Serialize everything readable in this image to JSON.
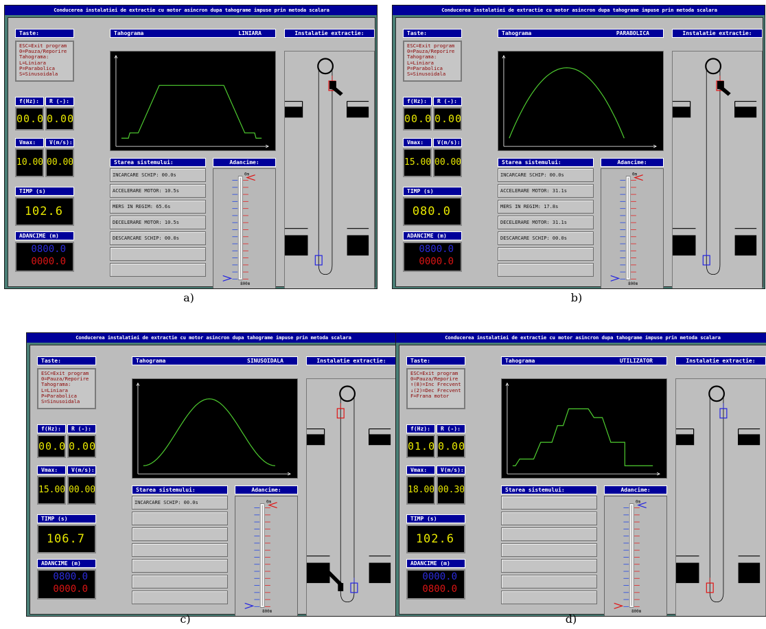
{
  "window_title": "Conducerea instalatiei de extractie cu motor asincron dupa tahograme impuse prin metoda scalara",
  "labels": {
    "keys_header": "Taste:",
    "freq_header": "f(Hz):",
    "r_header": "R (-):",
    "vmax_header": "Vmax:",
    "v_header": "V(m/s):",
    "time_header": "TIMP (s)",
    "depth_header": "ADANCIME (m)",
    "tach_header": "Tahograma",
    "status_header": "Starea sistemului:",
    "advance_header": "Adancime:",
    "shaft_header": "Instalatie extractie:",
    "scale_top": "0m",
    "scale_bottom": "800m"
  },
  "panels": [
    {
      "caption": "a)",
      "keys": [
        "ESC=Exit program",
        "0=Pauza/Reporire",
        "Tahograma:",
        "  L=Liniara",
        "  P=Parabolica",
        "  S=Sinusoidala"
      ],
      "tachogram_mode": "LINIARA",
      "curve_type": "linear",
      "freq": "00.0",
      "r": "0.00",
      "vmax": "10.00",
      "v": "00.00",
      "time": "102.6",
      "depth_a": "0800.0",
      "depth_b": "0000.0",
      "status_rows": [
        "INCARCARE SCHIP: 00.0s",
        "ACCELERARE MOTOR: 10.5s",
        "MERS IN REGIM: 65.6s",
        "DECELERARE MOTOR: 10.5s",
        "DESCARCARE SCHIP: 00.0s",
        "",
        ""
      ],
      "skip1_fraction": 0.0,
      "skip2_fraction": 1.0,
      "skip1_color": "#e01010",
      "skip2_color": "#2020e0",
      "top_arrow_color": "#e01010",
      "bottom_arrow_color": "#2020e0",
      "dump_arm": "top"
    },
    {
      "caption": "b)",
      "keys": [
        "ESC=Exit program",
        "0=Pauza/Reporire",
        "Tahograma:",
        "  L=Liniara",
        "  P=Parabolica",
        "  S=Sinusoidala"
      ],
      "tachogram_mode": "PARABOLICA",
      "curve_type": "parabolic",
      "freq": "00.0",
      "r": "0.00",
      "vmax": "15.00",
      "v": "00.00",
      "time": "080.0",
      "depth_a": "0800.0",
      "depth_b": "0000.0",
      "status_rows": [
        "INCARCARE SCHIP: 00.0s",
        "ACCELERARE MOTOR: 31.1s",
        "MERS IN REGIM: 17.8s",
        "DECELERARE MOTOR: 31.1s",
        "DESCARCARE SCHIP: 00.0s",
        "",
        ""
      ],
      "skip1_fraction": 0.0,
      "skip2_fraction": 1.0,
      "skip1_color": "#e01010",
      "skip2_color": "#2020e0",
      "top_arrow_color": "#e01010",
      "bottom_arrow_color": "#2020e0",
      "dump_arm": "top"
    },
    {
      "caption": "c)",
      "keys": [
        "ESC=Exit program",
        "0=Pauza/Reporire",
        "Tahograma:",
        "  L=Liniara",
        "  P=Parabolica",
        "  S=Sinusoidala"
      ],
      "tachogram_mode": "SINUSOIDALA",
      "curve_type": "sinusoidal",
      "freq": "00.0",
      "r": "0.00",
      "vmax": "15.00",
      "v": "00.00",
      "time": "106.7",
      "depth_a": "0800.0",
      "depth_b": "0000.0",
      "status_rows": [
        "INCARCARE SCHIP: 00.0s",
        "",
        "",
        "",
        "",
        "",
        ""
      ],
      "skip1_fraction": 1.0,
      "skip2_fraction": 0.0,
      "skip1_color": "#2020e0",
      "skip2_color": "#e01010",
      "top_arrow_color": "#e01010",
      "bottom_arrow_color": "#2020e0",
      "dump_arm": "bottom"
    },
    {
      "caption": "d)",
      "keys": [
        "ESC=Exit program",
        "0=Pauza/Reporire",
        "↑(8)=Inc Frecventa",
        "↓(2)=Dec Frecventa",
        "F=Frana motor"
      ],
      "tachogram_mode": "UTILIZATOR",
      "curve_type": "user",
      "freq": "01.0",
      "r": "0.00",
      "vmax": "18.00",
      "v": "00.30",
      "time": "102.6",
      "depth_a": "0000.0",
      "depth_b": "0800.0",
      "status_rows": [
        "",
        "",
        "",
        "",
        "",
        "",
        ""
      ],
      "skip1_fraction": 0.0,
      "skip2_fraction": 1.0,
      "skip1_color": "#2020e0",
      "skip2_color": "#e01010",
      "top_arrow_color": "#2020e0",
      "bottom_arrow_color": "#e01010",
      "dump_arm": "none"
    }
  ]
}
